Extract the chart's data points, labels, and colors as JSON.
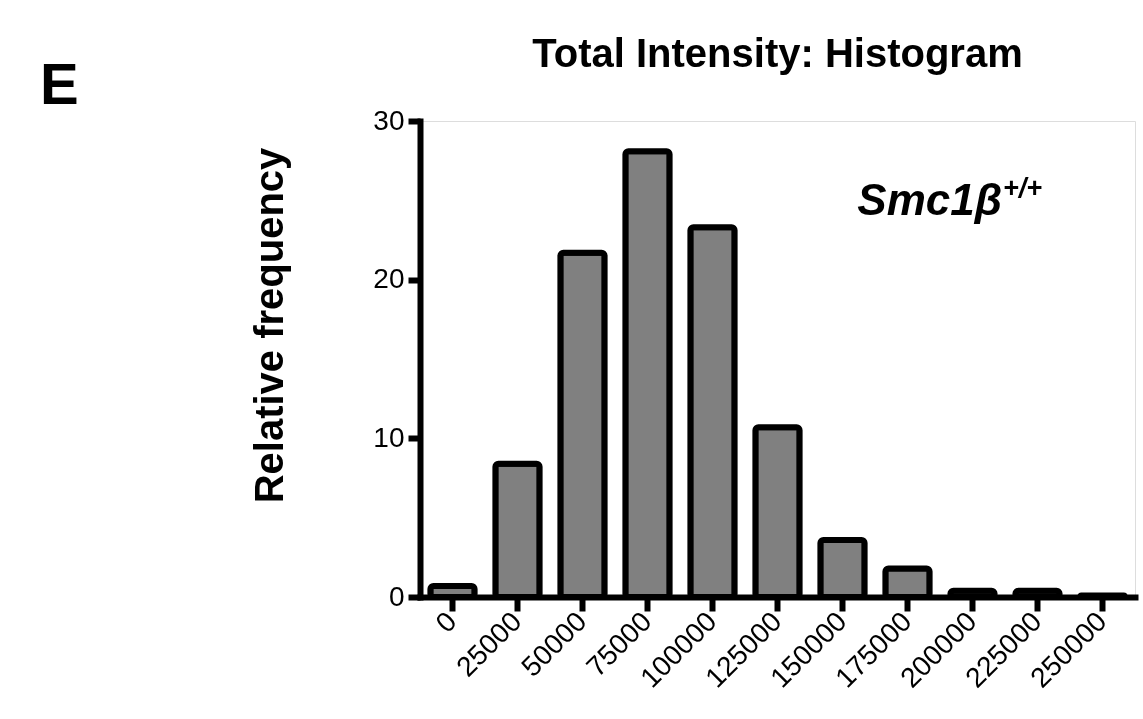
{
  "chart_data": {
    "type": "bar",
    "title": "Total Intensity: Histogram",
    "ylabel": "Relative frequency",
    "annotations": [
      "E",
      "Smc1β$^{+/+}$"
    ],
    "categories": [
      "0",
      "25000",
      "50000",
      "75000",
      "100000",
      "125000",
      "150000",
      "175000",
      "200000",
      "225000",
      "250000"
    ],
    "values": [
      0.7,
      8.4,
      21.7,
      28.1,
      23.3,
      10.7,
      3.6,
      1.8,
      0.4,
      0.4,
      0.1
    ],
    "color": "#808080",
    "ylim": [
      0,
      30
    ],
    "yticks": [
      0,
      10,
      20,
      30
    ]
  }
}
